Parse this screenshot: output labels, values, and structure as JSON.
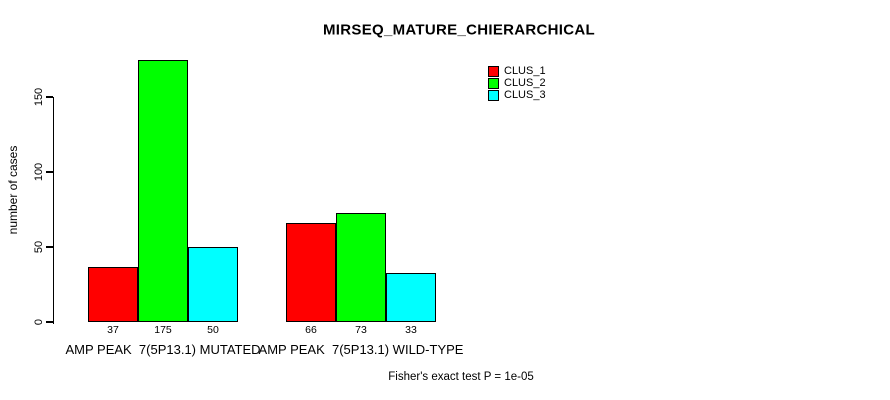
{
  "chart_data": {
    "type": "bar",
    "title": "MIRSEQ_MATURE_CHIERARCHICAL",
    "ylabel": "number of cases",
    "xlabel": "",
    "ylim": [
      0,
      175
    ],
    "yticks": [
      0,
      50,
      100,
      150
    ],
    "grid": false,
    "legend_position": "top-right",
    "categories": [
      "AMP PEAK  7(5P13.1) MUTATED",
      "AMP PEAK  7(5P13.1) WILD-TYPE"
    ],
    "series": [
      {
        "name": "CLUS_1",
        "color": "#ff0000",
        "values": [
          37,
          66
        ]
      },
      {
        "name": "CLUS_2",
        "color": "#00ff00",
        "values": [
          175,
          73
        ]
      },
      {
        "name": "CLUS_3",
        "color": "#00ffff",
        "values": [
          50,
          33
        ]
      }
    ],
    "bar_value_labels": [
      [
        37,
        175,
        50
      ],
      [
        66,
        73,
        33
      ]
    ],
    "annotation": "Fisher's exact test P = 1e-05"
  },
  "colors": {
    "axis": "#000000",
    "text": "#000000",
    "background": "#ffffff"
  }
}
